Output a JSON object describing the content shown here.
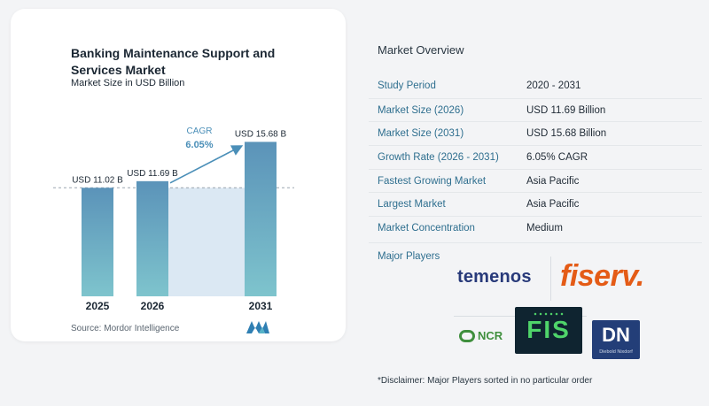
{
  "chart_data": {
    "type": "bar",
    "title": "Banking Maintenance Support and Services Market",
    "subtitle": "Market Size in USD Billion",
    "categories": [
      "2025",
      "2026",
      "2031"
    ],
    "values": [
      11.02,
      11.69,
      15.68
    ],
    "data_labels": [
      "USD 11.02 B",
      "USD 11.69 B",
      "USD 15.68 B"
    ],
    "annotation": {
      "label": "CAGR",
      "value": "6.05%"
    },
    "colors": {
      "bar_top": "#5b93b9",
      "bar_bottom": "#7ec4cd",
      "band": "#dbe8f3",
      "arrow": "#4b8fb8"
    }
  },
  "source": "Source:  Mordor Intelligence",
  "overview": {
    "title": "Market Overview",
    "rows": [
      {
        "key": "Study Period",
        "value": "2020 - 2031"
      },
      {
        "key": "Market Size (2026)",
        "value": "USD 11.69 Billion"
      },
      {
        "key": "Market Size (2031)",
        "value": "USD 15.68 Billion"
      },
      {
        "key": "Growth Rate (2026 - 2031)",
        "value": "6.05% CAGR"
      },
      {
        "key": "Fastest Growing Market",
        "value": "Asia Pacific"
      },
      {
        "key": "Largest Market",
        "value": "Asia Pacific"
      },
      {
        "key": "Market Concentration",
        "value": "Medium"
      }
    ],
    "players_label": "Major Players",
    "players": {
      "temenos": "temenos",
      "fiserv": "fiserv.",
      "ncr": "NCR",
      "fis": "FIS",
      "diebold_mark": "DN",
      "diebold_sub": "Diebold Nixdorf"
    },
    "disclaimer": "*Disclaimer: Major Players sorted in no particular order"
  }
}
